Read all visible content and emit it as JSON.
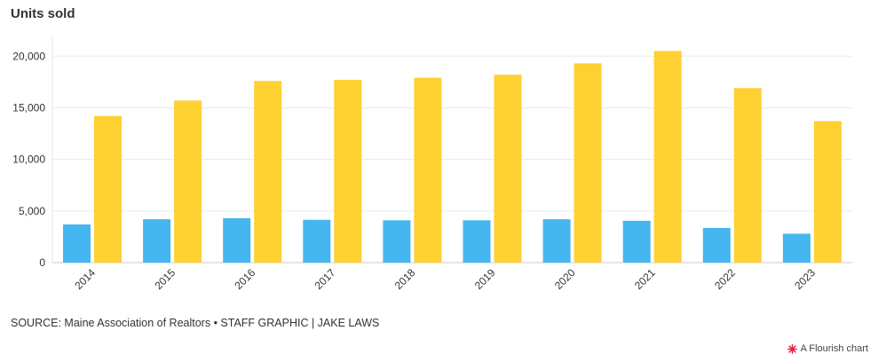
{
  "chart_data": {
    "type": "bar",
    "title": "Units sold",
    "categories": [
      "2014",
      "2015",
      "2016",
      "2017",
      "2018",
      "2019",
      "2020",
      "2021",
      "2022",
      "2023"
    ],
    "series": [
      {
        "color": "#45b6ef",
        "values": [
          3700,
          4200,
          4300,
          4150,
          4100,
          4100,
          4200,
          4050,
          3350,
          2800
        ]
      },
      {
        "color": "#ffd032",
        "values": [
          14200,
          15700,
          17600,
          17700,
          17900,
          18200,
          19300,
          20500,
          16900,
          13700
        ]
      }
    ],
    "y_ticks": [
      "0",
      "5,000",
      "10,000",
      "15,000",
      "20,000"
    ],
    "ylim": [
      0,
      22000
    ],
    "grid": true,
    "legend": "none"
  },
  "footer": {
    "source": "SOURCE: Maine Association of Realtors • STAFF GRAPHIC | JAKE LAWS",
    "credit": "A Flourish chart",
    "credit_icon": "flourish-logo-icon"
  }
}
